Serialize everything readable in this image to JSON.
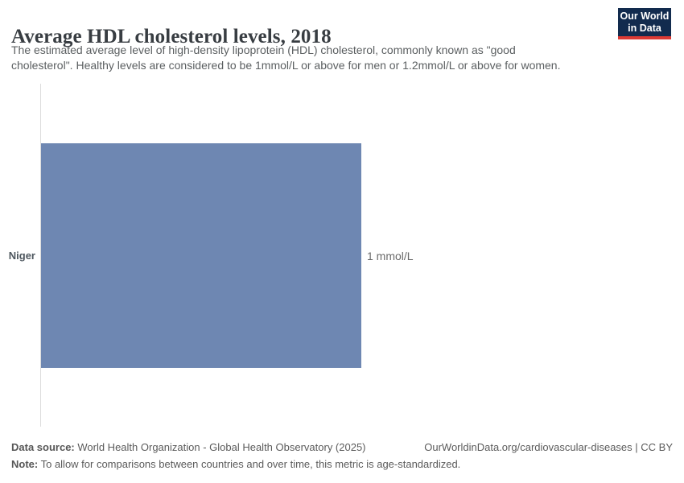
{
  "header": {
    "title": "Average HDL cholesterol levels, 2018",
    "subtitle_line1": "The estimated average level of high-density lipoprotein (HDL) cholesterol, commonly known as \"good",
    "subtitle_line2": "cholesterol\". Healthy levels are considered to be 1mmol/L or above for men or 1.2mmol/L or above for women.",
    "logo": {
      "line1": "Our World",
      "line2": "in Data",
      "bg_color": "#122b4e",
      "accent_color": "#dc3a34"
    }
  },
  "chart": {
    "entity_label": "Niger",
    "value_label": "1 mmol/L",
    "bar_color": "#6e87b2",
    "axis_line_color": "#dcdcdc"
  },
  "chart_data": {
    "type": "bar",
    "orientation": "horizontal",
    "title": "Average HDL cholesterol levels, 2018",
    "year": "2018",
    "categories": [
      "Niger"
    ],
    "values": [
      1
    ],
    "value_labels": [
      "1 mmol/L"
    ],
    "unit": "mmol/L",
    "xlabel": "",
    "ylabel": "",
    "xlim": [
      0,
      1
    ],
    "grid": false,
    "legend": false,
    "bar_color": "#6e87b2"
  },
  "footer": {
    "data_source_label": "Data source:",
    "data_source_text": " World Health Organization - Global Health Observatory (2025)",
    "link_text": "OurWorldinData.org/cardiovascular-diseases | CC BY",
    "note_label": "Note:",
    "note_text": " To allow for comparisons between countries and over time, this metric is age-standardized."
  }
}
